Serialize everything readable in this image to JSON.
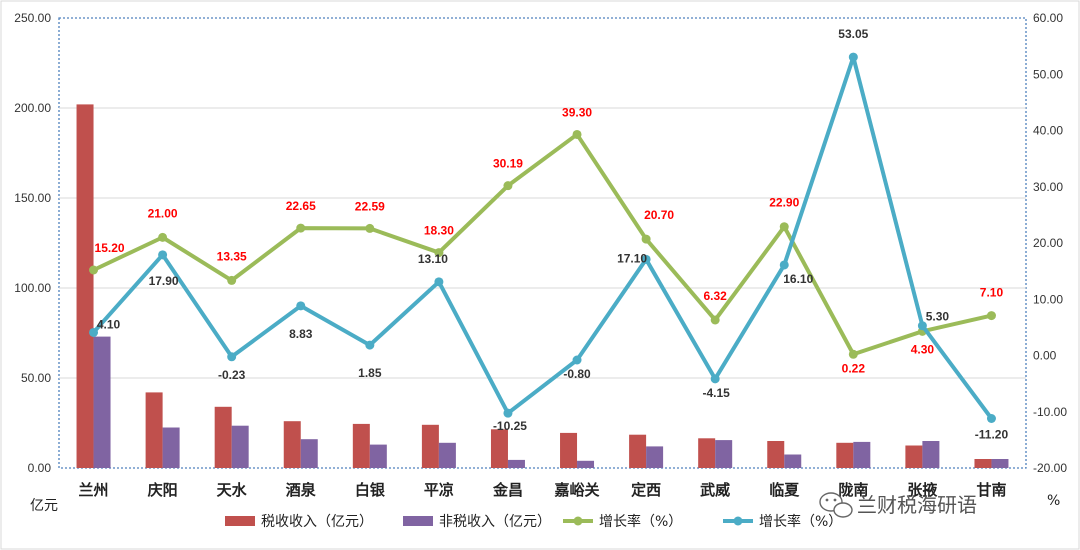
{
  "chart_data": {
    "type": "bar",
    "categories": [
      "兰州",
      "庆阳",
      "天水",
      "酒泉",
      "白银",
      "平凉",
      "金昌",
      "嘉峪关",
      "定西",
      "武威",
      "临夏",
      "陇南",
      "张掖",
      "甘南"
    ],
    "series": [
      {
        "name": "税收收入（亿元）",
        "type": "bar",
        "axis": "left",
        "color": "#c0504d",
        "values": [
          202,
          42,
          34,
          26,
          24.5,
          24,
          21.5,
          19.5,
          18.5,
          16.5,
          15,
          14,
          12.5,
          5
        ]
      },
      {
        "name": "非税收入（亿元）",
        "type": "bar",
        "axis": "left",
        "color": "#8064a2",
        "values": [
          73,
          22.5,
          23.5,
          16,
          13,
          14,
          4.5,
          4,
          12,
          15.5,
          7.5,
          14.5,
          15,
          5
        ]
      },
      {
        "name": "增长率（%）",
        "type": "line",
        "axis": "right",
        "color": "#9bbb59",
        "values": [
          15.2,
          21.0,
          13.35,
          22.65,
          22.59,
          18.3,
          30.19,
          39.3,
          20.7,
          6.32,
          22.9,
          0.22,
          4.3,
          7.1
        ],
        "labels": [
          "15.20",
          "21.00",
          "13.35",
          "22.65",
          "22.59",
          "18.30",
          "30.19",
          "39.30",
          "20.70",
          "6.32",
          "22.90",
          "0.22",
          "4.30",
          "7.10"
        ]
      },
      {
        "name": "增长率（%）",
        "type": "line",
        "axis": "right",
        "color": "#4bacc6",
        "values": [
          4.1,
          17.9,
          -0.23,
          8.83,
          1.85,
          13.1,
          -10.25,
          -0.8,
          17.1,
          -4.15,
          16.1,
          53.05,
          5.3,
          -11.2
        ],
        "labels": [
          "4.10",
          "17.90",
          "-0.23",
          "8.83",
          "1.85",
          "13.10",
          "-10.25",
          "-0.80",
          "17.10",
          "-4.15",
          "16.10",
          "53.05",
          "5.30",
          "-11.20"
        ]
      }
    ],
    "y_left": {
      "min": 0,
      "max": 250,
      "step": 50,
      "tick_labels": [
        "0.00",
        "50.00",
        "100.00",
        "150.00",
        "200.00",
        "250.00"
      ]
    },
    "y_right": {
      "min": -20,
      "max": 60,
      "step": 10,
      "tick_labels": [
        "-20.00",
        "-10.00",
        "0.00",
        "10.00",
        "20.00",
        "30.00",
        "40.00",
        "50.00",
        "60.00"
      ]
    },
    "unit_label": "亿元",
    "grid": true,
    "legend_position": "bottom"
  },
  "watermark": {
    "text": "兰财税海研语",
    "icon": "wechat-icon",
    "trailing": "%"
  }
}
